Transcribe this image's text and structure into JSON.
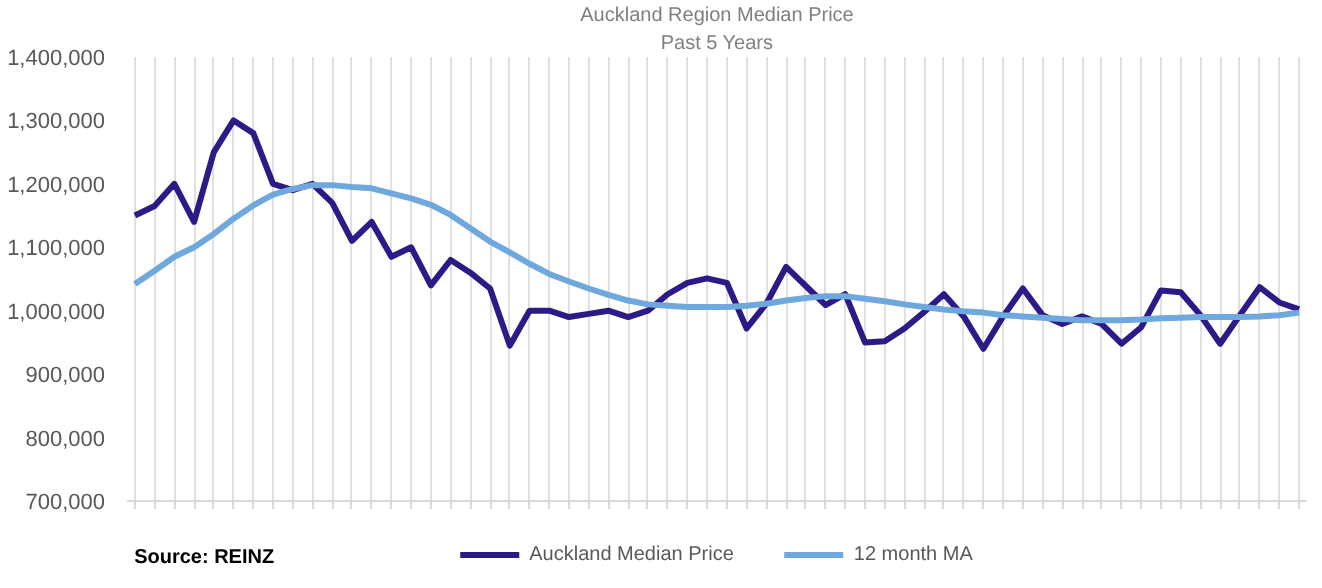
{
  "chart_data": {
    "type": "line",
    "title": "Auckland Region Median Price",
    "subtitle": "Past 5 Years",
    "categories": [
      null,
      null,
      null,
      null,
      null,
      null,
      null,
      null,
      null,
      null,
      null,
      null,
      null,
      null,
      null,
      null,
      null,
      null,
      null,
      null,
      null,
      null,
      null,
      null,
      null,
      null,
      null,
      null,
      null,
      null,
      null,
      null,
      null,
      null,
      null,
      null,
      null,
      null,
      null,
      null,
      null,
      null,
      null,
      null,
      null,
      null,
      null,
      null,
      null,
      null,
      null,
      null,
      null,
      null,
      null,
      null,
      null,
      null,
      null,
      null
    ],
    "series": [
      {
        "name": "Auckland Median Price",
        "color": "#2e1a87",
        "values": [
          1150000,
          1165000,
          1200000,
          1140000,
          1250000,
          1300000,
          1280000,
          1200000,
          1190000,
          1200000,
          1170000,
          1110000,
          1140000,
          1085000,
          1100000,
          1040000,
          1080000,
          1060000,
          1035000,
          945000,
          1000000,
          1000000,
          990000,
          995000,
          1000000,
          990000,
          1000000,
          1026000,
          1044000,
          1051000,
          1044000,
          972000,
          1011000,
          1069000,
          1039000,
          1009000,
          1026000,
          950000,
          952000,
          972000,
          998000,
          1026000,
          991000,
          940000,
          991000,
          1035000,
          993000,
          979000,
          991000,
          979000,
          948000,
          974000,
          1032000,
          1029000,
          993000,
          948000,
          993000,
          1037000,
          1013000,
          1002000
        ]
      },
      {
        "name": "12 month MA",
        "color": "#6fa8dc",
        "values": [
          1042000,
          1063000,
          1085000,
          1100000,
          1121000,
          1145000,
          1166000,
          1183000,
          1192000,
          1198000,
          1198000,
          1195000,
          1193000,
          1185000,
          1177000,
          1167000,
          1151000,
          1130000,
          1109000,
          1092000,
          1074000,
          1058000,
          1046000,
          1035000,
          1025000,
          1016000,
          1010000,
          1008000,
          1006000,
          1006000,
          1006000,
          1008000,
          1011000,
          1016000,
          1020000,
          1023000,
          1023000,
          1019000,
          1015000,
          1010000,
          1006000,
          1002000,
          999000,
          997000,
          993000,
          991000,
          989000,
          987000,
          985000,
          985000,
          985000,
          986000,
          988000,
          989000,
          990000,
          990000,
          990000,
          991000,
          993000,
          997000
        ]
      }
    ],
    "ylim": [
      700000,
      1400000
    ],
    "yticks": [
      {
        "value": 700000,
        "label": "700,000"
      },
      {
        "value": 800000,
        "label": "800,000"
      },
      {
        "value": 900000,
        "label": "900,000"
      },
      {
        "value": 1000000,
        "label": "1,000,000"
      },
      {
        "value": 1100000,
        "label": "1,100,000"
      },
      {
        "value": 1200000,
        "label": "1,200,000"
      },
      {
        "value": 1300000,
        "label": "1,300,000"
      },
      {
        "value": 1400000,
        "label": "1,400,000"
      }
    ],
    "grid": "x",
    "legend": "bottom",
    "tick_labels": "y",
    "annotations": [
      "Source: REINZ"
    ]
  }
}
